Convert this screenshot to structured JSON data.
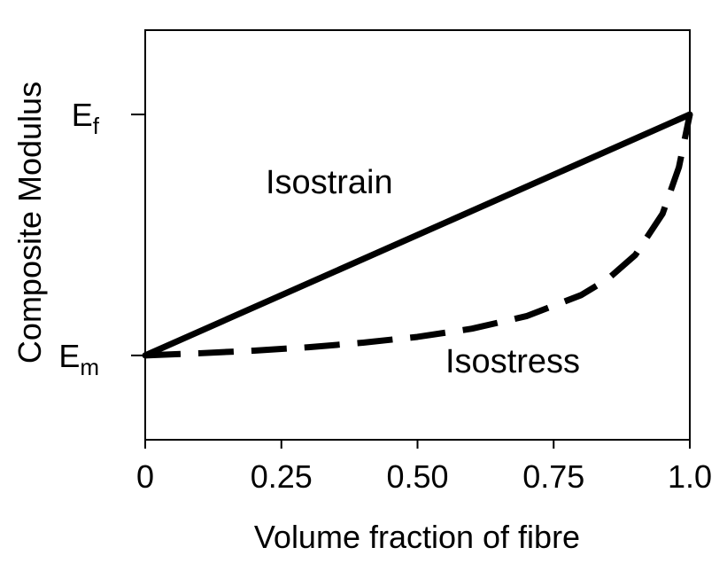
{
  "chart_data": {
    "type": "line",
    "title": "",
    "xlabel": "Volume fraction of fibre",
    "ylabel": "Composite Modulus",
    "xlim": [
      0,
      1
    ],
    "ylim": [
      -0.35,
      1.35
    ],
    "x_ticks": [
      {
        "value": 0,
        "label": "0"
      },
      {
        "value": 0.25,
        "label": "0.25"
      },
      {
        "value": 0.5,
        "label": "0.50"
      },
      {
        "value": 0.75,
        "label": "0.75"
      },
      {
        "value": 1.0,
        "label": "1.0"
      }
    ],
    "y_ticks": [
      {
        "value": 0,
        "label_main": "E",
        "label_sub": "m"
      },
      {
        "value": 1,
        "label_main": "E",
        "label_sub": "f"
      }
    ],
    "grid": false,
    "legend": "none",
    "series": [
      {
        "name": "Isostrain",
        "style": "solid",
        "color": "#000000",
        "x": [
          0,
          1
        ],
        "y": [
          0,
          1
        ]
      },
      {
        "name": "Isostress",
        "style": "dashed",
        "color": "#000000",
        "x": [
          0,
          0.1,
          0.2,
          0.3,
          0.4,
          0.5,
          0.6,
          0.7,
          0.8,
          0.85,
          0.9,
          0.95,
          0.98,
          1.0
        ],
        "y": [
          0,
          0.009,
          0.02,
          0.034,
          0.053,
          0.077,
          0.111,
          0.163,
          0.25,
          0.318,
          0.417,
          0.588,
          0.781,
          1.0
        ]
      }
    ],
    "annotations": [
      {
        "text": "Isostrain",
        "series": "Isostrain"
      },
      {
        "text": "Isostress",
        "series": "Isostress"
      }
    ]
  }
}
